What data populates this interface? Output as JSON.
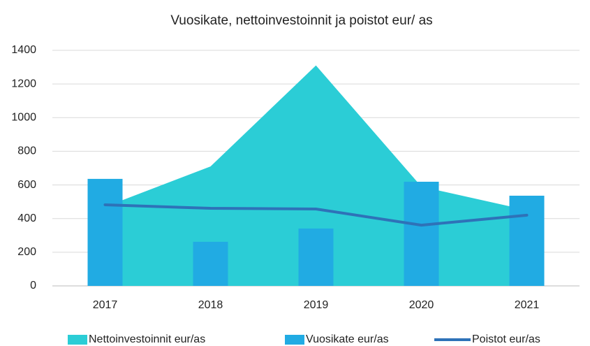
{
  "chart_data": {
    "type": "combo",
    "title": "Vuosikate, nettoinvestoinnit ja poistot eur/ as",
    "categories": [
      "2017",
      "2018",
      "2019",
      "2020",
      "2021"
    ],
    "series": [
      {
        "name": "Nettoinvestoinnit eur/as",
        "type": "area",
        "color": "#2bcdd6",
        "values": [
          470,
          710,
          1310,
          590,
          450
        ]
      },
      {
        "name": "Vuosikate eur/as",
        "type": "bar",
        "color": "#21abe3",
        "values": [
          636,
          262,
          341,
          619,
          536
        ]
      },
      {
        "name": "Poistot eur/as",
        "type": "line",
        "color": "#2e72b8",
        "values": [
          482,
          461,
          457,
          361,
          420
        ]
      }
    ],
    "ylim": [
      0,
      1400
    ],
    "yticks": [
      0,
      200,
      400,
      600,
      800,
      1000,
      1200,
      1400
    ],
    "grid": true,
    "legend": "bottom"
  }
}
